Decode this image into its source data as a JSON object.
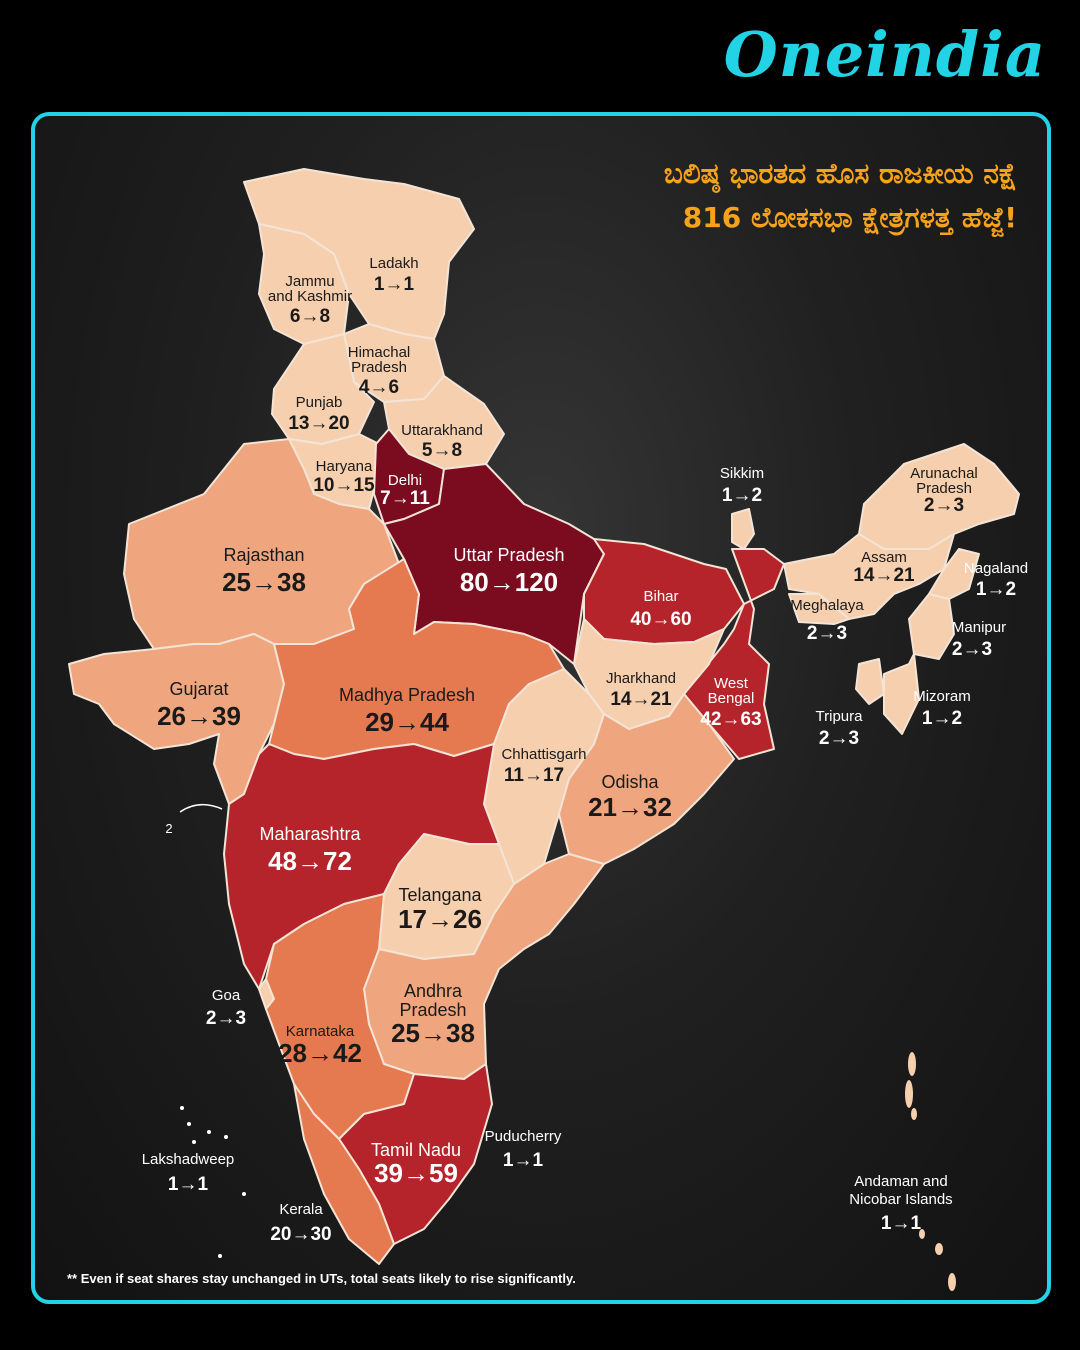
{
  "brand": "Oneindia",
  "headline": {
    "line1": "ಬಲಿಷ್ಠ ಭಾರತದ ಹೊಸ ರಾಜಕೀಯ ನಕ್ಷೆ",
    "line2": "816 ಲೋಕಸಭಾ ಕ್ಷೇತ್ರಗಳತ್ತ ಹೆಜ್ಜೆ!"
  },
  "footnote": "** Even if seat shares stay unchanged in UTs, total seats likely to rise significantly.",
  "annotation": "2",
  "colors": {
    "frame": "#22d3e6",
    "headline": "#f7a21b",
    "shade_lightest": "#f6cfae",
    "shade_light": "#efa67f",
    "shade_medium": "#e5794f",
    "shade_dark": "#b4242a",
    "shade_darkest": "#7b0b1f"
  },
  "states": [
    {
      "name": "Ladakh",
      "seats": "1→1"
    },
    {
      "name": "Jammu and Kashmir",
      "seats": "6→8"
    },
    {
      "name": "Himachal Pradesh",
      "seats": "4→6"
    },
    {
      "name": "Punjab",
      "seats": "13→20"
    },
    {
      "name": "Uttarakhand",
      "seats": "5→8"
    },
    {
      "name": "Haryana",
      "seats": "10→15"
    },
    {
      "name": "Delhi",
      "seats": "7→11"
    },
    {
      "name": "Rajasthan",
      "seats": "25→38"
    },
    {
      "name": "Uttar Pradesh",
      "seats": "80→120"
    },
    {
      "name": "Bihar",
      "seats": "40→60"
    },
    {
      "name": "Sikkim",
      "seats": "1→2"
    },
    {
      "name": "Arunachal Pradesh",
      "seats": "2→3"
    },
    {
      "name": "Assam",
      "seats": "14→21"
    },
    {
      "name": "Nagaland",
      "seats": "1→2"
    },
    {
      "name": "Meghalaya",
      "seats": "2→3"
    },
    {
      "name": "Manipur",
      "seats": "2→3"
    },
    {
      "name": "Mizoram",
      "seats": "1→2"
    },
    {
      "name": "Tripura",
      "seats": "2→3"
    },
    {
      "name": "Gujarat",
      "seats": "26→39"
    },
    {
      "name": "Madhya Pradesh",
      "seats": "29→44"
    },
    {
      "name": "Jharkhand",
      "seats": "14→21"
    },
    {
      "name": "West Bengal",
      "seats": "42→63"
    },
    {
      "name": "Chhattisgarh",
      "seats": "11→17"
    },
    {
      "name": "Odisha",
      "seats": "21→32"
    },
    {
      "name": "Maharashtra",
      "seats": "48→72"
    },
    {
      "name": "Telangana",
      "seats": "17→26"
    },
    {
      "name": "Goa",
      "seats": "2→3"
    },
    {
      "name": "Andhra Pradesh",
      "seats": "25→38"
    },
    {
      "name": "Karnataka",
      "seats": "28→42"
    },
    {
      "name": "Puducherry",
      "seats": "1→1"
    },
    {
      "name": "Lakshadweep",
      "seats": "1→1"
    },
    {
      "name": "Tamil Nadu",
      "seats": "39→59"
    },
    {
      "name": "Kerala",
      "seats": "20→30"
    },
    {
      "name": "Andaman and Nicobar Islands",
      "seats": "1→1"
    }
  ]
}
